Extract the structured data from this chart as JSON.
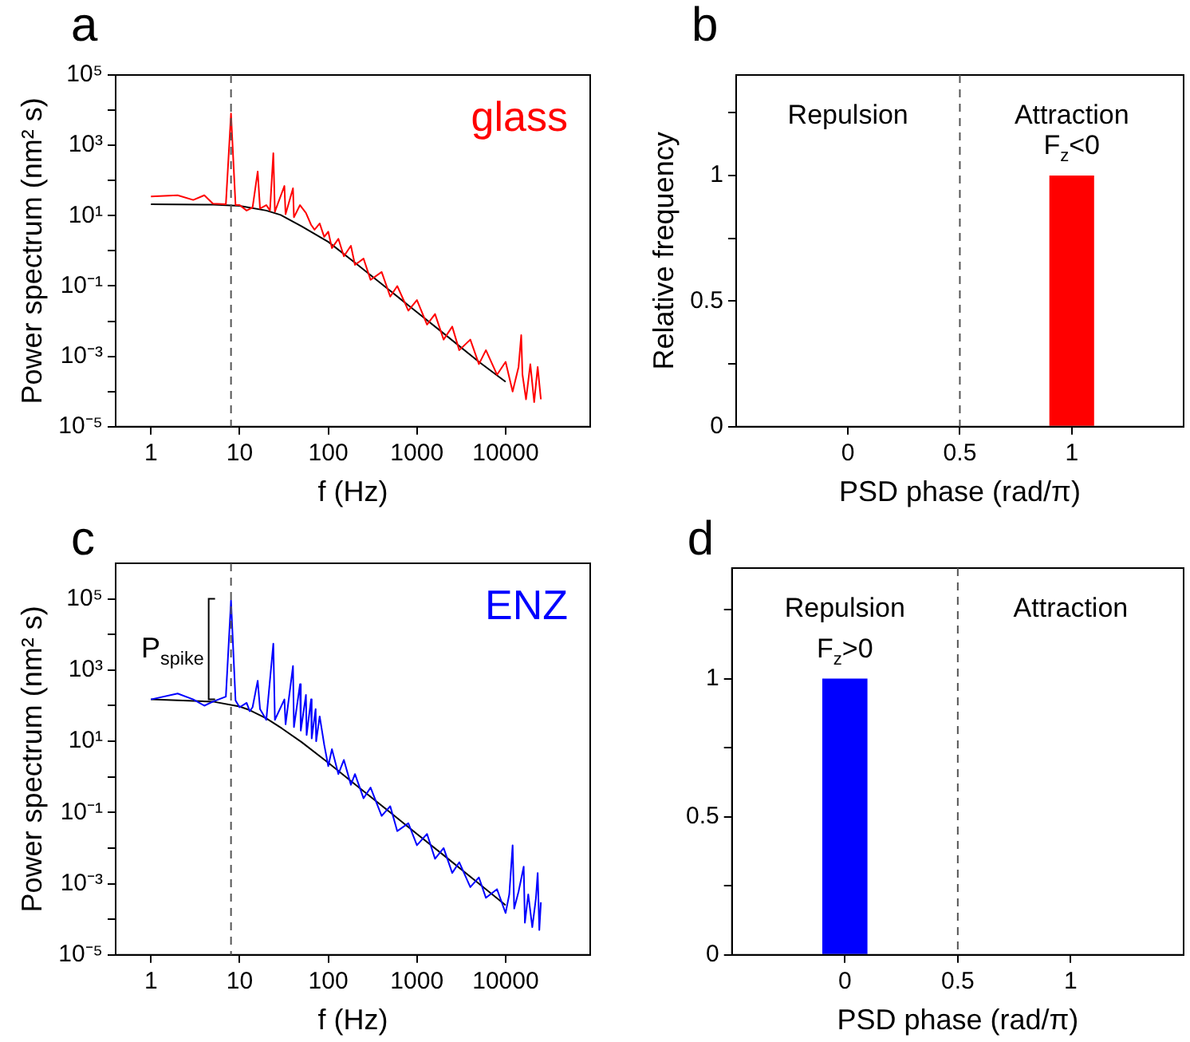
{
  "chart_data": [
    {
      "type": "line",
      "title": "a",
      "xlabel": "f (Hz)",
      "ylabel": "Power spectrum (nm² s)",
      "log": "xy",
      "marker": "none",
      "xlim": [
        0.4,
        90000
      ],
      "ylim": [
        1e-05,
        100000
      ],
      "xticks": [
        1,
        10,
        100,
        1000,
        10000
      ],
      "yticks": [
        {
          "value": 1e-05,
          "label": "10⁻⁵"
        },
        {
          "value": 0.0001,
          "label": null
        },
        {
          "value": 0.001,
          "label": "10⁻³"
        },
        {
          "value": 0.01,
          "label": null
        },
        {
          "value": 0.1,
          "label": "10⁻¹"
        },
        {
          "value": 1,
          "label": null
        },
        {
          "value": 10,
          "label": "10¹"
        },
        {
          "value": 100,
          "label": null
        },
        {
          "value": 1000,
          "label": "10³"
        },
        {
          "value": 10000,
          "label": null
        },
        {
          "value": 100000,
          "label": "10⁵"
        }
      ],
      "ref_lines": [
        {
          "axis": "x",
          "value": 8,
          "line_style": "dashed",
          "color": "#555555"
        }
      ],
      "series": [
        {
          "name": "glass",
          "color": "#ff0000",
          "x": [
            1,
            2,
            3,
            4,
            5,
            7,
            8,
            9,
            10,
            12,
            14,
            16,
            17,
            20,
            22,
            24,
            25,
            32,
            33,
            40,
            41,
            48,
            56,
            64,
            70,
            80,
            90,
            100,
            110,
            130,
            150,
            180,
            200,
            250,
            300,
            400,
            500,
            600,
            800,
            1000,
            1300,
            1600,
            2000,
            2500,
            3000,
            4000,
            5000,
            6000,
            8000,
            10000,
            12000,
            14000,
            15000,
            15500,
            17000,
            19000,
            21000,
            23000,
            25000
          ],
          "values": [
            35,
            38,
            28,
            38,
            22,
            21,
            8000,
            20,
            20,
            14,
            17,
            180,
            16,
            20,
            14,
            600,
            13,
            70,
            11,
            60,
            9,
            20,
            12,
            5.5,
            4,
            6,
            2.5,
            3.5,
            1.2,
            2.2,
            0.7,
            1.4,
            0.4,
            0.6,
            0.15,
            0.25,
            0.05,
            0.1,
            0.02,
            0.04,
            0.008,
            0.016,
            0.003,
            0.007,
            0.0015,
            0.003,
            0.0006,
            0.0015,
            0.0003,
            0.0007,
            0.0001,
            0.0005,
            0.004,
            0.0003,
            6e-05,
            0.0006,
            5e-05,
            0.0005,
            6e-05
          ]
        },
        {
          "color": "#000000",
          "x": [
            1,
            5,
            10,
            20,
            29,
            50,
            100,
            200,
            500,
            1000,
            2000,
            5000,
            10000
          ],
          "values": [
            21,
            20.5,
            19,
            14,
            10.5,
            5,
            1.8,
            0.46,
            0.073,
            0.018,
            0.0045,
            0.0007,
            0.00019
          ]
        }
      ]
    },
    {
      "type": "bar",
      "title": "b",
      "xlabel": "PSD phase (rad/π)",
      "ylabel": "Relative frequency",
      "xlim": [
        -0.5,
        1.5
      ],
      "ylim": [
        0,
        1.4
      ],
      "xticks": [
        0,
        0.5,
        1
      ],
      "yticks": [
        0,
        {
          "value": 0.25,
          "label": null
        },
        0.5,
        {
          "value": 0.75,
          "label": null
        },
        1,
        {
          "value": 1.25,
          "label": null
        }
      ],
      "x": [
        1
      ],
      "values": [
        1
      ],
      "color": "#ff0000",
      "ref_lines": [
        {
          "axis": "x",
          "value": 0.5,
          "line_style": "dashed",
          "color": "#555555"
        }
      ],
      "annotations": [
        "Repulsion",
        "Attraction",
        {
          "text": "F$_{z}$<0",
          "x": 1,
          "y": 1
        }
      ]
    },
    {
      "type": "line",
      "title": "c",
      "xlabel": "f (Hz)",
      "ylabel": "Power spectrum (nm² s)",
      "log": "xy",
      "marker": "none",
      "xlim": [
        0.4,
        90000
      ],
      "ylim": [
        1e-05,
        1000000
      ],
      "xticks": [
        1,
        10,
        100,
        1000,
        10000
      ],
      "yticks": [
        {
          "value": 1e-05,
          "label": "10⁻⁵"
        },
        {
          "value": 0.0001,
          "label": null
        },
        {
          "value": 0.001,
          "label": "10⁻³"
        },
        {
          "value": 0.01,
          "label": null
        },
        {
          "value": 0.1,
          "label": "10⁻¹"
        },
        {
          "value": 1,
          "label": null
        },
        {
          "value": 10,
          "label": "10¹"
        },
        {
          "value": 100,
          "label": null
        },
        {
          "value": 1000,
          "label": "10³"
        },
        {
          "value": 10000,
          "label": null
        },
        {
          "value": 100000,
          "label": "10⁵"
        }
      ],
      "ref_lines": [
        {
          "axis": "x",
          "value": 8,
          "line_style": "dashed",
          "color": "#555555"
        }
      ],
      "annotations": [
        {
          "text": "P$_{spike}$",
          "x": 8,
          "y": 100000
        }
      ],
      "series": [
        {
          "name": "ENZ",
          "color": "#0000ff",
          "x": [
            1,
            2,
            3,
            4,
            5,
            7,
            8,
            9,
            10,
            12,
            13,
            14,
            16,
            17,
            20,
            24,
            25,
            32,
            33,
            40,
            41,
            48,
            49,
            56,
            57,
            64,
            65,
            72,
            73,
            80,
            90,
            100,
            110,
            130,
            150,
            180,
            200,
            250,
            300,
            400,
            500,
            600,
            800,
            1000,
            1300,
            1600,
            2000,
            2500,
            3000,
            4000,
            5000,
            6000,
            8000,
            10000,
            11000,
            12000,
            12500,
            14000,
            16000,
            16500,
            18000,
            20000,
            22000,
            23000,
            24000,
            25000
          ],
          "values": [
            150,
            220,
            150,
            100,
            130,
            180,
            90000,
            140,
            90,
            120,
            70,
            90,
            500,
            80,
            40,
            5500,
            40,
            150,
            30,
            1300,
            25,
            400,
            20,
            200,
            15,
            150,
            12,
            80,
            10,
            50,
            8,
            2,
            6,
            1.2,
            3,
            0.6,
            1.2,
            0.25,
            0.5,
            0.08,
            0.15,
            0.03,
            0.05,
            0.012,
            0.025,
            0.005,
            0.01,
            0.002,
            0.004,
            0.0008,
            0.0015,
            0.0004,
            0.0007,
            0.00015,
            0.0005,
            0.012,
            0.0002,
            0.0006,
            0.003,
            8e-05,
            0.0005,
            6e-05,
            0.0004,
            0.002,
            5e-05,
            0.0003
          ]
        },
        {
          "color": "#000000",
          "x": [
            1,
            5,
            10,
            13,
            20,
            30,
            50,
            100,
            200,
            500,
            1000,
            2000,
            5000,
            10000
          ],
          "values": [
            150,
            130,
            95,
            75,
            44,
            23,
            9.5,
            2.5,
            0.62,
            0.1,
            0.025,
            0.0063,
            0.001,
            0.00025
          ]
        }
      ]
    },
    {
      "type": "bar",
      "title": "d",
      "xlabel": "PSD phase (rad/π)",
      "xlim": [
        -0.5,
        1.5
      ],
      "ylim": [
        0,
        1.4
      ],
      "xticks": [
        0,
        0.5,
        1
      ],
      "yticks": [
        0,
        {
          "value": 0.25,
          "label": null
        },
        0.5,
        {
          "value": 0.75,
          "label": null
        },
        1,
        {
          "value": 1.25,
          "label": null
        }
      ],
      "x": [
        0
      ],
      "values": [
        1
      ],
      "color": "#0000ff",
      "ref_lines": [
        {
          "axis": "x",
          "value": 0.5,
          "line_style": "dashed",
          "color": "#555555"
        }
      ],
      "annotations": [
        "Repulsion",
        "Attraction",
        {
          "text": "F$_{z}$>0",
          "x": 0,
          "y": 1
        }
      ]
    }
  ]
}
